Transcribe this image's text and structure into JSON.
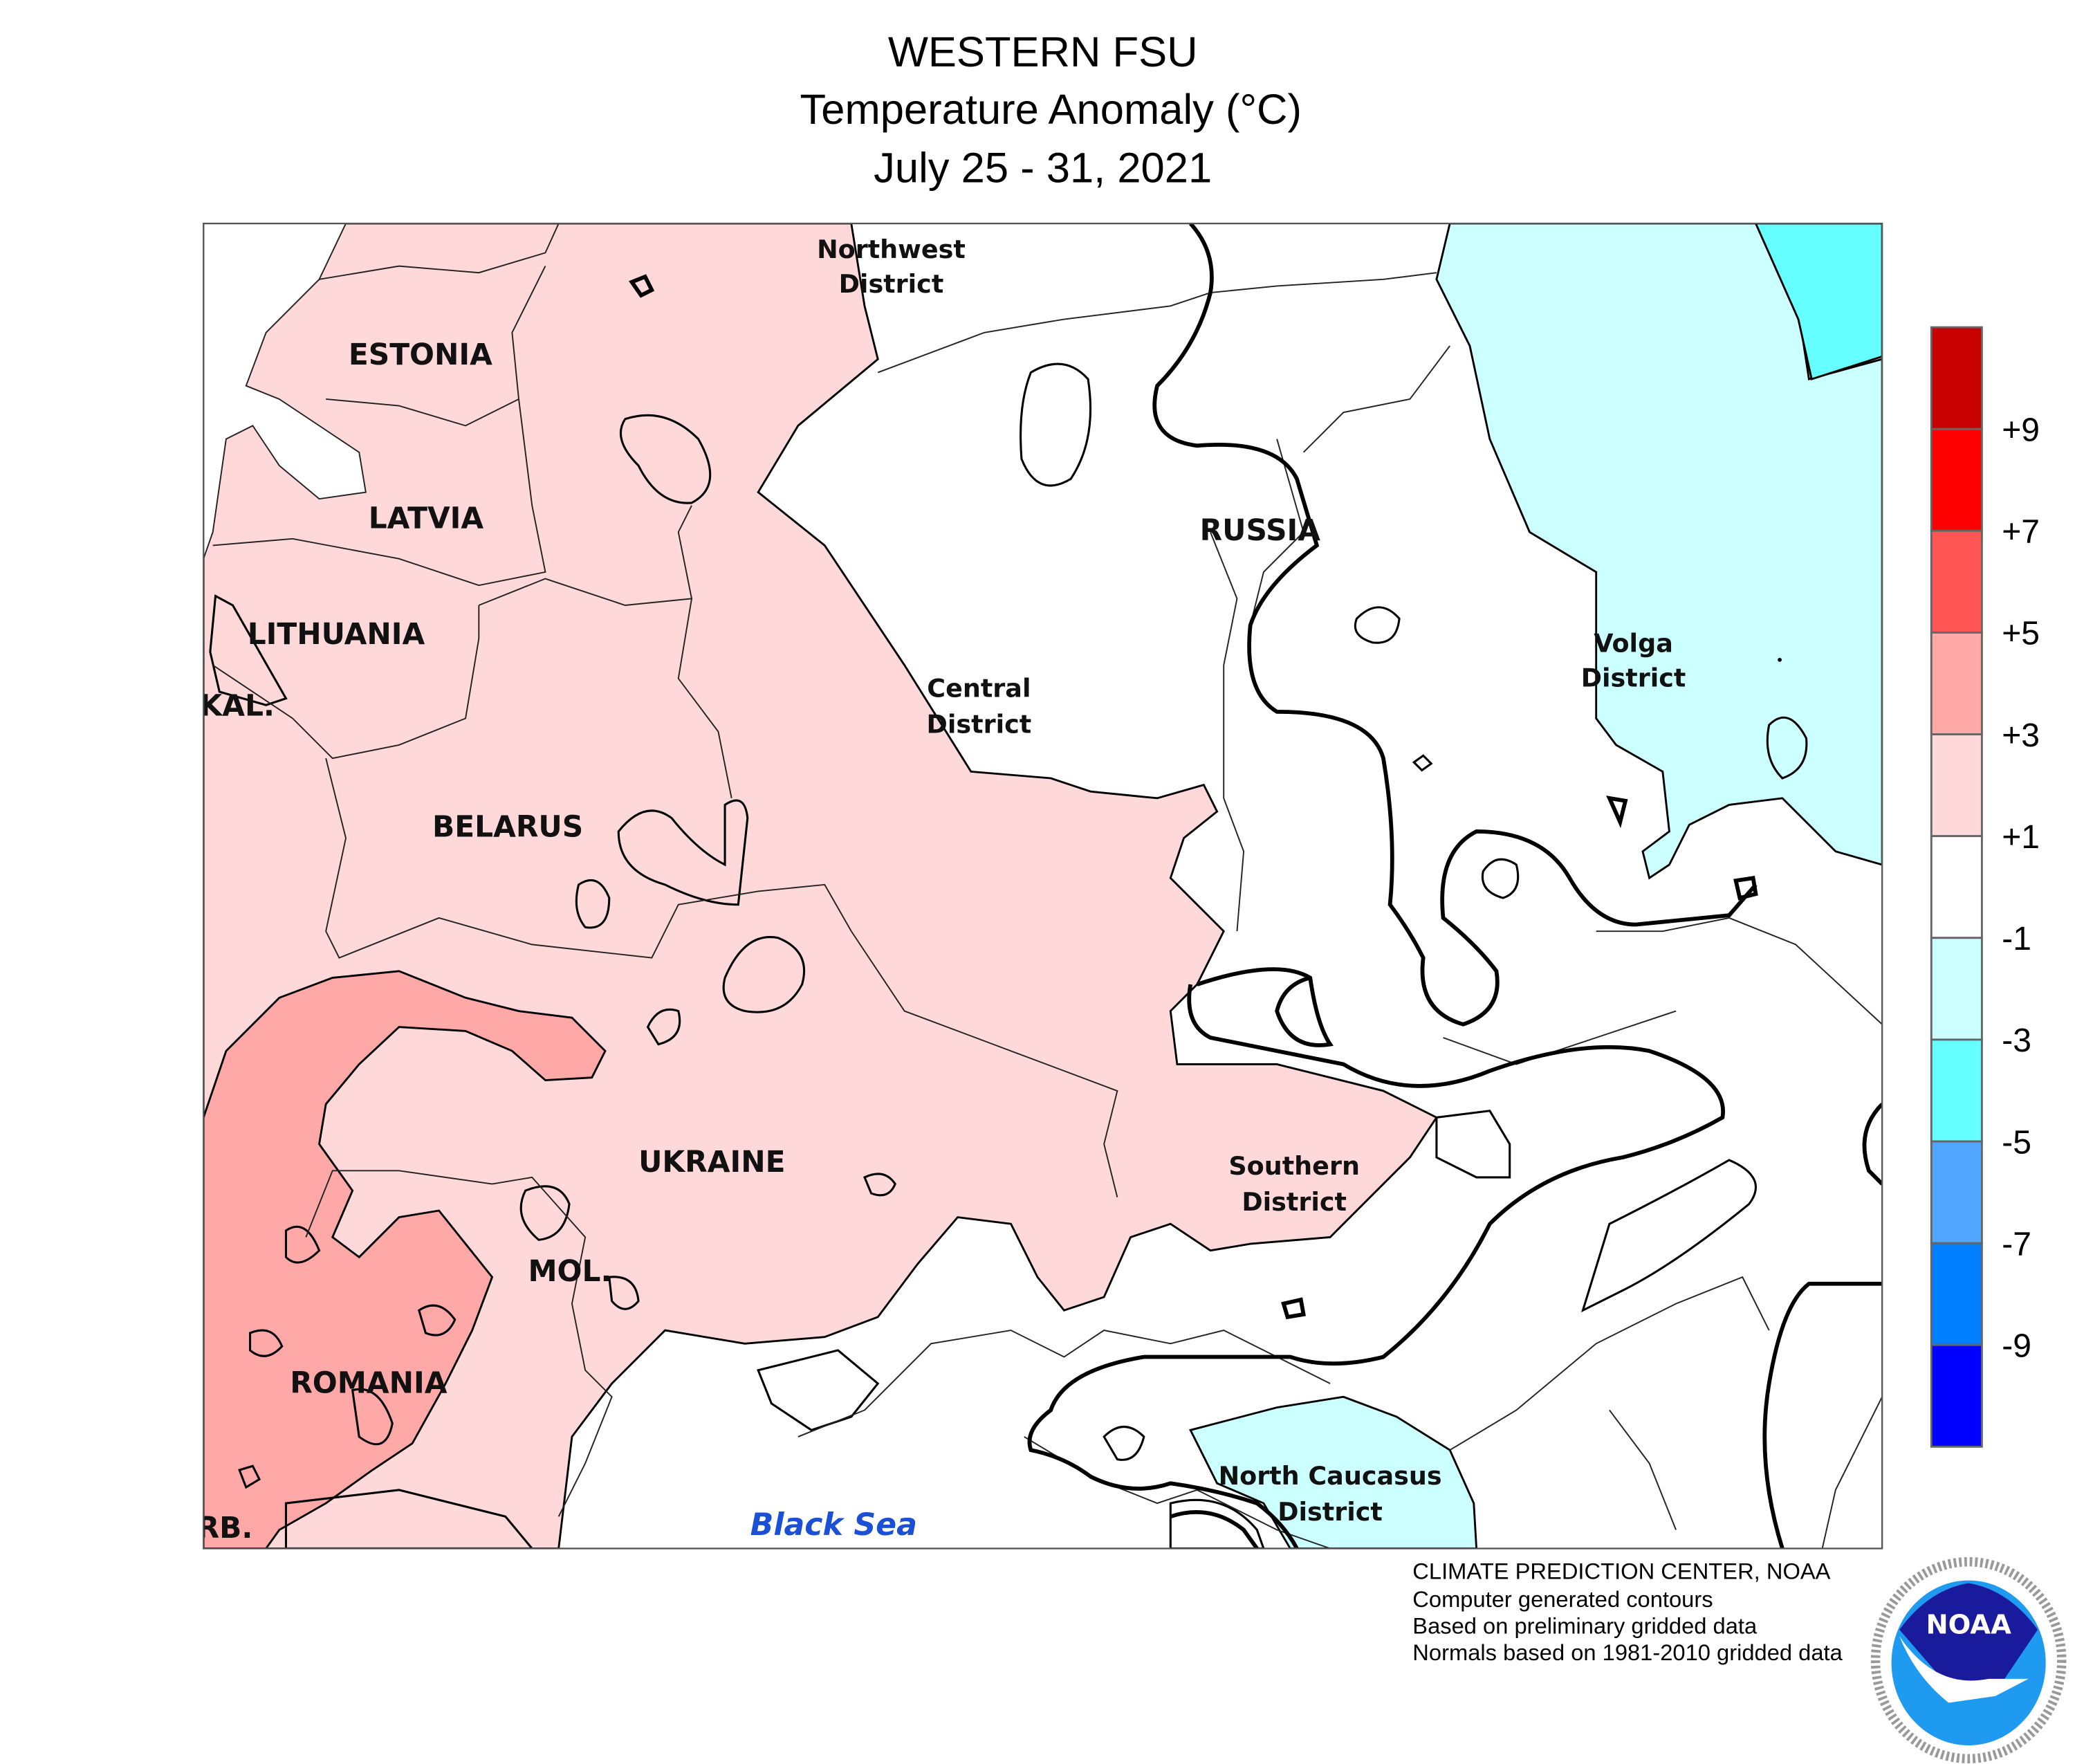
{
  "header": {
    "title": "WESTERN FSU",
    "subtitle": "Temperature Anomaly (°C)",
    "date_range": "July 25 - 31, 2021"
  },
  "map": {
    "country_labels": [
      "ESTONIA",
      "LATVIA",
      "LITHUANIA",
      "KAL.",
      "BELARUS",
      "UKRAINE",
      "MOL.",
      "ROMANIA",
      "RB.",
      "RUSSIA"
    ],
    "district_labels": [
      [
        "Northwest",
        "District"
      ],
      [
        "Central",
        "District"
      ],
      [
        "Volga",
        "District"
      ],
      [
        "Southern",
        "District"
      ],
      [
        "North Caucasus",
        "District"
      ]
    ],
    "sea_label": "Black Sea",
    "fill_colors": {
      "above_plus1": "#ffd9d9",
      "above_plus3": "#ffa8a8",
      "below_minus1": "#ccffff",
      "below_minus3": "#66ffff",
      "neutral": "#ffffff"
    }
  },
  "legend": {
    "labels": [
      "+9",
      "+7",
      "+5",
      "+3",
      "+1",
      "-1",
      "-3",
      "-5",
      "-7",
      "-9"
    ],
    "colors": [
      "#c80000",
      "#ff0000",
      "#ff5555",
      "#ffa8a8",
      "#ffd9d9",
      "#ffffff",
      "#ccffff",
      "#66ffff",
      "#50a5ff",
      "#0080ff",
      "#0000ff"
    ]
  },
  "footer": {
    "lines": [
      "CLIMATE PREDICTION CENTER, NOAA",
      "Computer generated contours",
      "Based on preliminary gridded data",
      "Normals based on 1981-2010 gridded data"
    ],
    "logo_text": "NOAA",
    "logo_ring_text": "NATIONAL OCEANIC AND ATMOSPHERIC ADMINISTRATION · U.S. DEPARTMENT OF COMMERCE"
  }
}
